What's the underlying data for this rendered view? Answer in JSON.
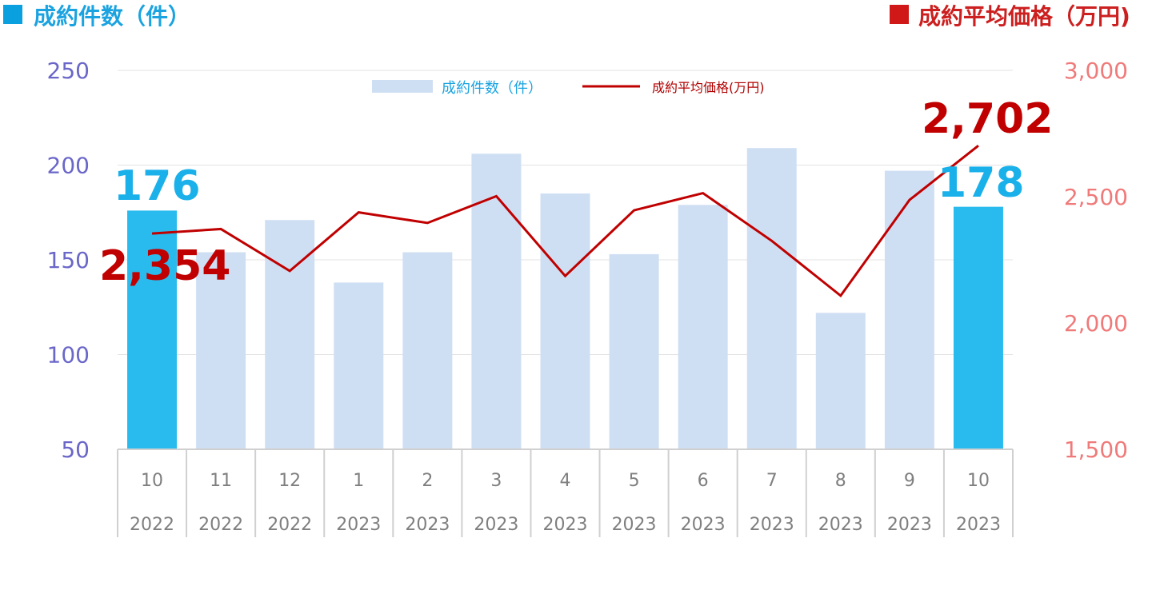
{
  "header": {
    "left_title": "成約件数（件）",
    "right_title": "成約平均価格（万円)"
  },
  "colors": {
    "bar_normal": "#cfdff3",
    "bar_highlight": "#29bbee",
    "line": "#c00000",
    "left_axis": "#6a67c9",
    "right_axis": "#f07a7a",
    "header_left_square": "#0aa0e0",
    "header_right_square": "#d01818"
  },
  "chart_data": {
    "type": "bar",
    "categories": [
      {
        "month": "10",
        "year": "2022"
      },
      {
        "month": "11",
        "year": "2022"
      },
      {
        "month": "12",
        "year": "2022"
      },
      {
        "month": "1",
        "year": "2023"
      },
      {
        "month": "2",
        "year": "2023"
      },
      {
        "month": "3",
        "year": "2023"
      },
      {
        "month": "4",
        "year": "2023"
      },
      {
        "month": "5",
        "year": "2023"
      },
      {
        "month": "6",
        "year": "2023"
      },
      {
        "month": "7",
        "year": "2023"
      },
      {
        "month": "8",
        "year": "2023"
      },
      {
        "month": "9",
        "year": "2023"
      },
      {
        "month": "10",
        "year": "2023"
      }
    ],
    "series": [
      {
        "name": "成約件数（件）",
        "type": "bar",
        "axis": "left",
        "values": [
          176,
          154,
          171,
          138,
          154,
          206,
          185,
          153,
          179,
          209,
          122,
          197,
          178
        ],
        "highlight_indices": [
          0,
          12
        ]
      },
      {
        "name": "成約平均価格(万円)",
        "type": "line",
        "axis": "right",
        "values": [
          2354,
          2372,
          2206,
          2438,
          2396,
          2502,
          2186,
          2446,
          2514,
          2325,
          2108,
          2487,
          2702
        ]
      }
    ],
    "left_axis": {
      "ylim": [
        50,
        250
      ],
      "ticks": [
        "250",
        "200",
        "150",
        "100",
        "50"
      ],
      "tick_values": [
        250,
        200,
        150,
        100,
        50
      ]
    },
    "right_axis": {
      "ylim": [
        1500,
        3000
      ],
      "ticks": [
        "3,000",
        "2,500",
        "2,000",
        "1,500"
      ],
      "tick_values": [
        3000,
        2500,
        2000,
        1500
      ]
    },
    "grid": true,
    "legend_placement": "top-center",
    "data_labels": {
      "count_first": "176",
      "count_last": "178",
      "price_first": "2,354",
      "price_last": "2,702"
    }
  }
}
